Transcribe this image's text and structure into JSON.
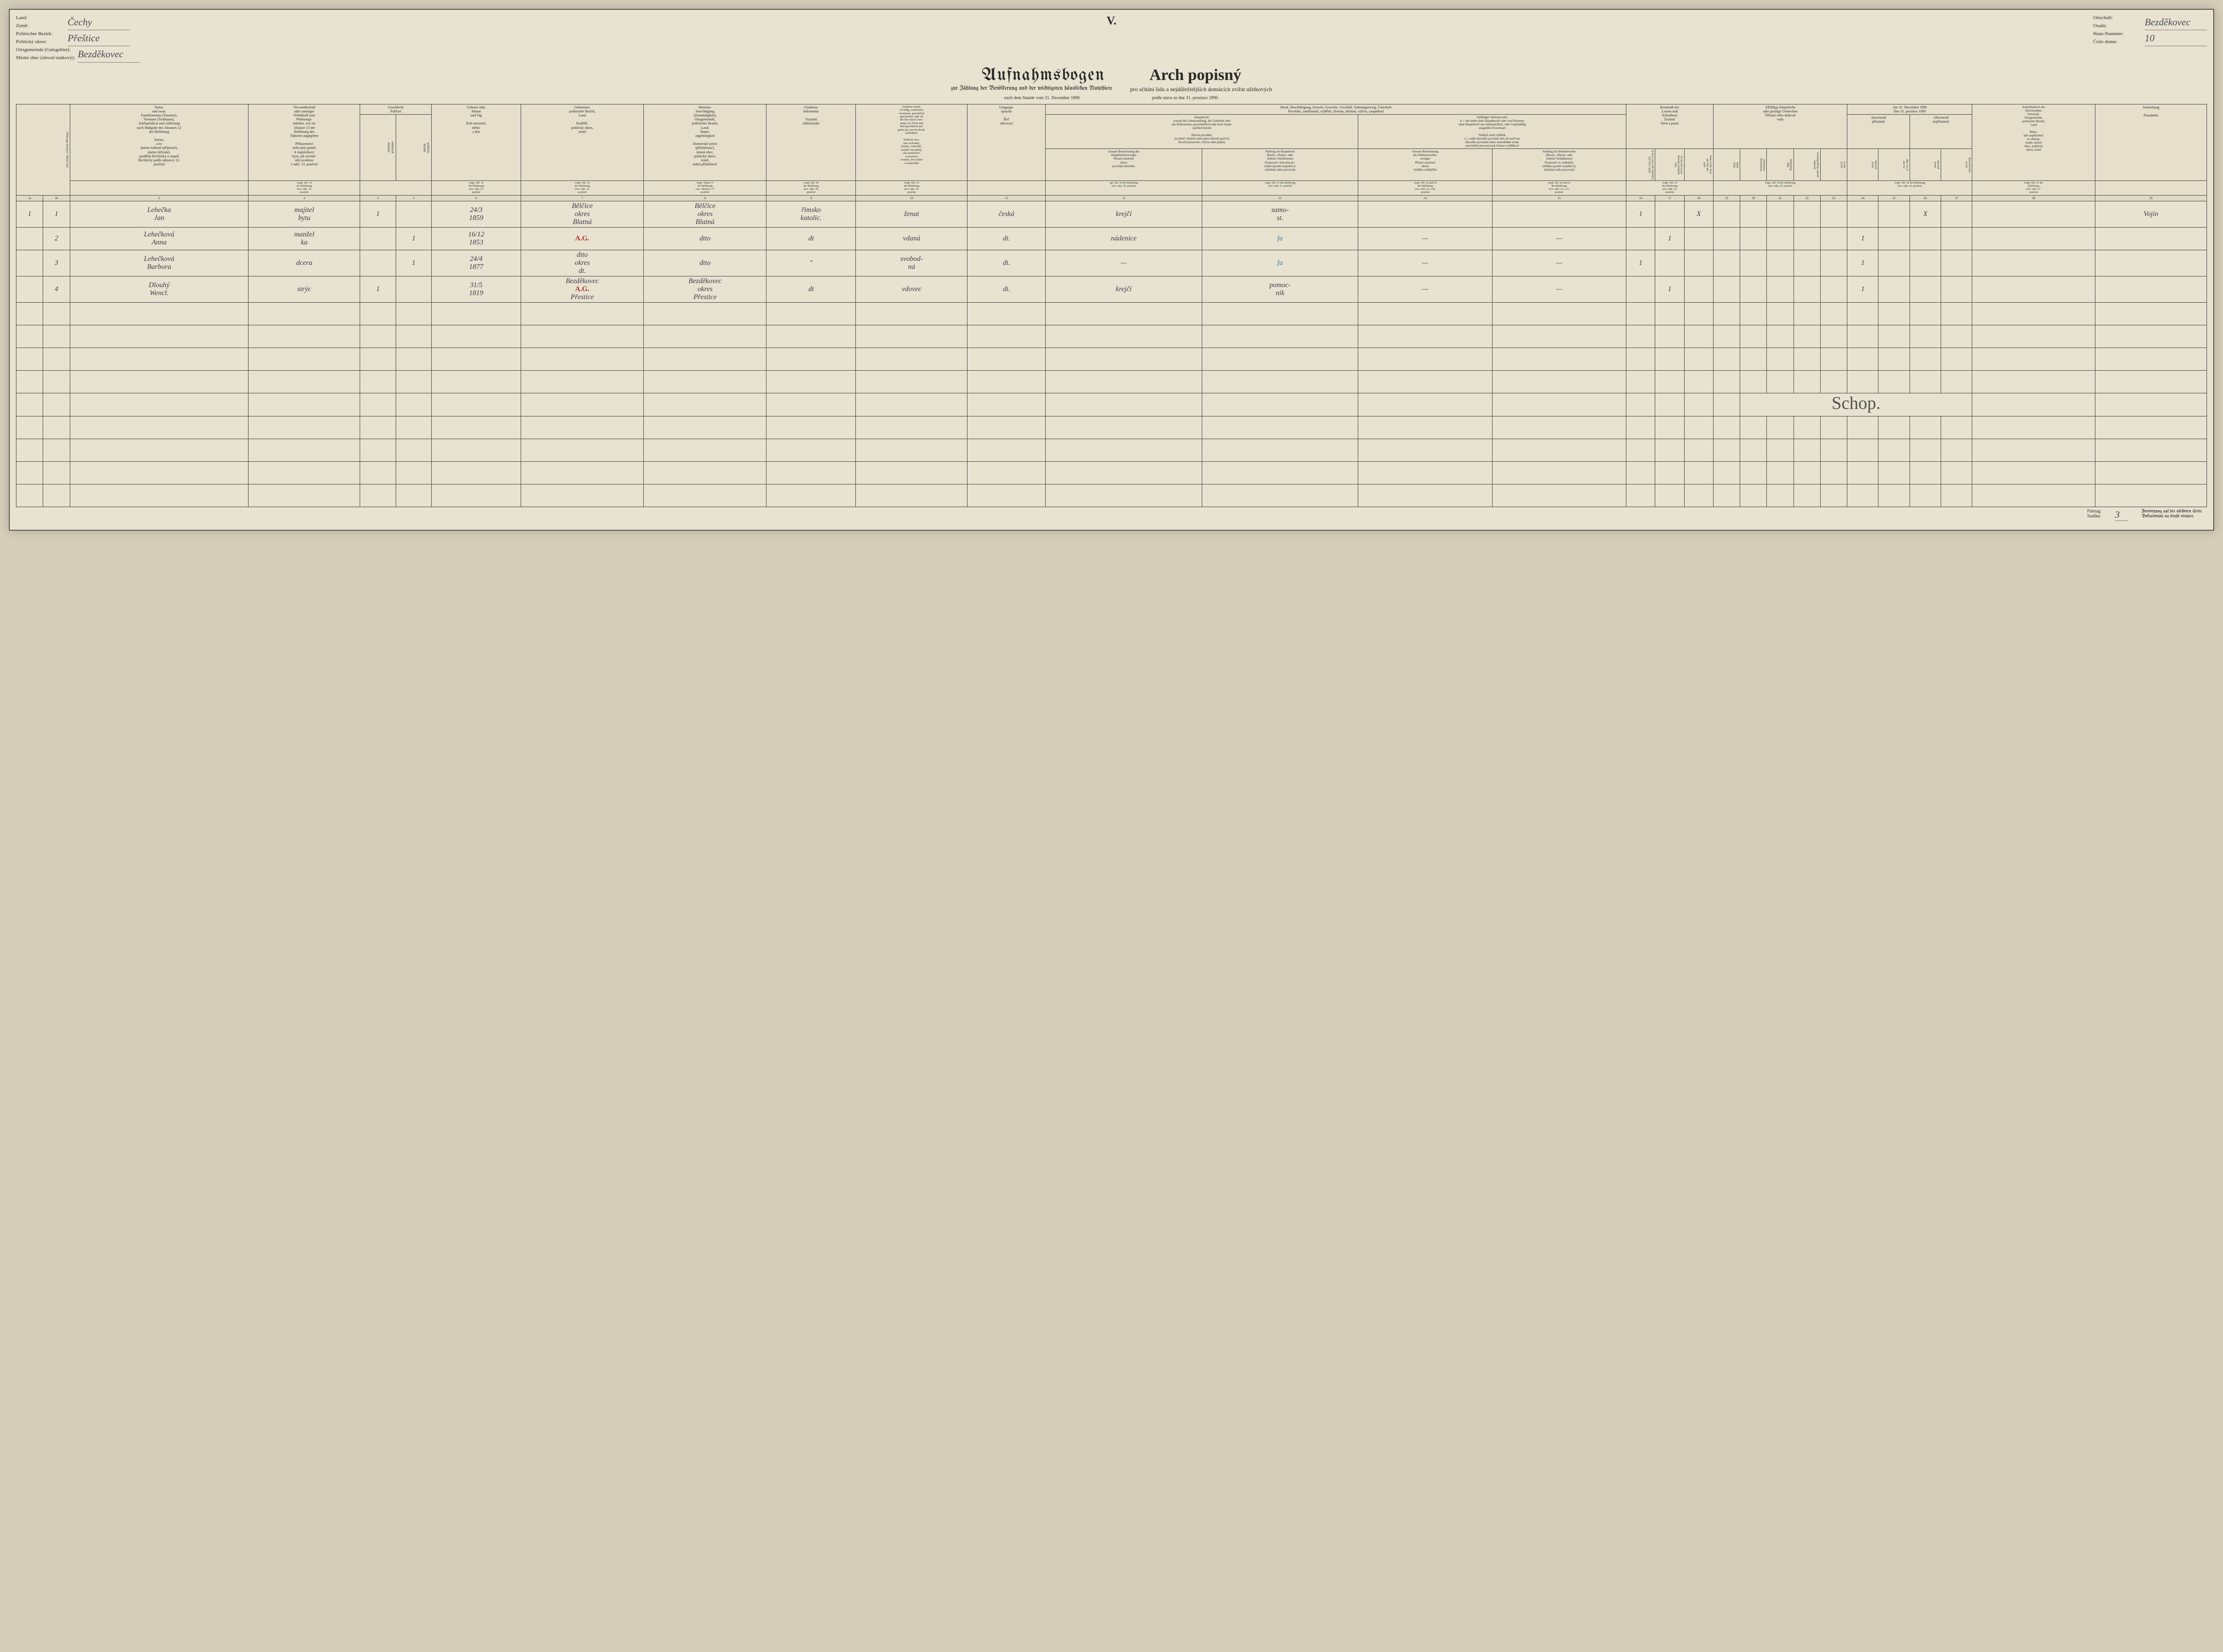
{
  "sheet_number": "V.",
  "header_left": {
    "land": {
      "de": "Land:",
      "cz": "Země:",
      "val": "Čechy"
    },
    "bezirk": {
      "de": "Politischer Bezirk:",
      "cz": "Politický okres:",
      "val": "Přeštice"
    },
    "gemeinde": {
      "de": "Ortsgemeinde (Gutsgebiet):",
      "cz": "Místní obec (obvod statkový):",
      "val": "Bezděkovec"
    }
  },
  "header_right": {
    "ort": {
      "de": "Ortschaft:",
      "cz": "Osada:",
      "val": "Bezděkovec"
    },
    "haus": {
      "de": "Haus-Nummer:",
      "cz": "Číslo domu:",
      "val": "10"
    }
  },
  "title_de": "Aufnahmsbogen",
  "title_cz": "Arch popisný",
  "subtitle_de": "zur Zählung der Bevölkerung und der wichtigsten häuslichen Nutzthiere",
  "subtitle_cz": "pro sčítání lidu a nejdůležitějších domácích zvířat užitkových",
  "date_de": "nach dem Stande vom 31. December 1890.",
  "date_cz": "podle stavu ze dne 31. prosince 1890.",
  "col_groups": {
    "g1": "",
    "g2": "Name,\nund zwar:\nFamilienname (Zuname),\nVorname (Taufname),\nAdelsprädicat und Adelsrang\nnach Maßgabe des Absatzes 12\nder Belehrung\n\nJméno,\na to:\njméno rodinné (příjmení),\njméno (křestní),\npredikát šlechtický a stupeň\nšlechtický podle odstavce 12.\npoučení",
    "g3": "Verwandtschaft\noder sonstiges\nVerhältniß zum\nWohnungs-\ninhaber, wie im\nAbsatze 13 der\nBelehrung des\nNäheren angegeben\n\nPříbuzenství\nnebo jiný poměr\nk majetníkovi\nbytu, jak zevrub-\nněji uvedeno\nv odst. 13. poučení",
    "g4": "Geschlecht\nPohlaví",
    "g5": "Geburts-Jahr,\nMonat\nund Tag\n\nRok narození,\nměsíc\na den",
    "g6": "Geburtsort,\npolitischer Bezirk,\nLand\n\nRodiště,\npolitický okres,\nzemě",
    "g7": "Heimats-\nberechtigung\n(Zuständigkeit),\nOrtsgemeinde,\npolitischer Bezirk,\nLand,\nStaats-\nangehörigkeit\n\nDomovské právo\n(příslušnosť),\nmístní obec,\npolitický okres,\nzemě,\nstátní příslušnosť",
    "g8": "Glaubens-\nbekenntnis\n\nVyznání\nnáboženské",
    "g9": "Familien-Stand,\nob ledig, verheiratet,\nverwitwet, gerichtlich\ngeschieden, oder ob\ndie Ehe durch Tren-\nnung von Tisch und\nBett gerichtlich auf-\ngelöst ist; nur bei Richt-\nkatholiken\n\nRodinný stav,\nzda svobodný,\nženatý, ovdovělý,\nsoudně rozvedený,\nzda manželství\nrozloučeno\nsoudem_loto toliko\nu nekatolíků",
    "g10": "Umgangs-\nsprache\n\nŘeč\nobcovací",
    "g11": "Beruf, Beschäftigung, Erwerb, Gewerbe, Geschäft, Nahrungszweig, Unterhalt\nPovolání, zaměstnání, výdělek, živnost, obchod, výživa, zaopatření",
    "g11a": "Hauptberuf,\nworauf die Lebensstellung, der Unterhalt oder\ndas Einkommen ausschließlich oder doch haupt-\nsächlich beruht\n\nHlavní povolání,\nna němž výlučně nebo přece hlavně spočívá\nživotní postavení, výživa nebo příjmy",
    "g11b": "Allfälliger Nebenerwerb,\nd. i. die neben dem Hauptberufe oder von Personen\nohne Hauptberuf nur nebensächlich, oder vorjelmäßig\nausgeübte Erwerbsart\n\nVedlejší snad výdělek,\nt. j. vedle hlavního povolání neb od osob bez\nhlavního povolání toliko mimořádně avšak\npravidelně provozovaná činnost výdělková",
    "g12": "Genaue Bezeichnung des\nHauptberufszweiges\nPřesné označení\noboru\npovolání hlavního",
    "g13": "Stellung im Hauptberuf\nBesitz-, Dienst- oder\nArbeits-Verhältnisse)\nPostavení v hlavním po-\nvolání (poměr majetkový,\nslužebný nebo pracovní)",
    "g14": "Genaue Bezeichnung\ndes Nebenerwerbs-\nzweiges\nPřesné označení\noboru\nvýdělku vedlejšího",
    "g15": "Stellung im Nebenerwerbe\n(Besitz-, Dienst- oder\nArbeits-Verhältnisse)\nPostavení ve vedlejším\nvýdělku (poměr majetkový,\nslužebný nebo pracovní)",
    "g16": "Kenntniß des\nLesens und\nSchreibens\nZnalosť\nčtení a psaní",
    "g17": "Allfällige körperliche\noder geistige Gebrechen\nTělesné nebo duševní\nvady",
    "g18": "Am 31. December 1890\nDne 31. prosince 1890",
    "g18a": "Anwesend\npřítomný",
    "g18b": "Abwesend\nnepřítomný",
    "g19": "Aufenthaltsort des\nAbwesenden,\nOrtschaft,\nOrtsgemeinde,\npolitischer Bezirk,\nLand\n\nMísto,\nkde nepřítomný\nse zdržuje,\nosada, místní\nobec, politický\nokres, země",
    "g20": "Anmerkung\n\nPoznámka"
  },
  "sub": {
    "s4m": "männlich\nmužské",
    "s4f": "weiblich\nženské",
    "s16a": "ist des Lesen und Schreiben\numí čísti i psáti",
    "s16b": "ist nur des Lesen\nDovede poněkmd\nčísti",
    "s16c": "kann weder lesen\nani čísti ani\npsáti",
    "s17a": "blind\nslepý",
    "s17b": "taubstumm\nhluchoněmý",
    "s17c": "blödsinnig\nblbý",
    "s17d": "irrsinnig šílený, smyslů\nzbavený",
    "s17e": "Cretin\nkretin",
    "s18a1": "dauernd\ntrvale",
    "s18a2": "dort, wo er\nans čas",
    "s18b1": "dauernd\ntrvale",
    "s18b2": "dauernd trvale\nna čas"
  },
  "refs": {
    "r3": "vergl. Abf. 14\nder Belehrung\nsrov. odst. 14.\npoučení",
    "r7": "vergl. Abf. 15\nder Belehrung\nsrov. odst. 15.\npoučení",
    "r8": "vergl. Abf. 16\nder Belehrung\nsrov. odst. 16.\npoučení",
    "r9": "vergl. Absatz 17\nder Belehrung\nsrov. odstavec 17.\npoučení",
    "r10": "vergl. Abf. 18\nder Belehrung\nsrov. odst. 18.\npoučení",
    "r11": "vergl. Abf. 19\nder Belehrung\nsrov. odst. 19.\npoučení",
    "r12": "vgl. Abf. 20 der Belehrung\nsrov. odst. 20. poučení",
    "r13": "vergl. Abf. 21 der Belehrung\nsrov. odst. 21. poučení",
    "r14": "vergl. Abf. 22 und 20\nder Belehrung\nsrov. odst. 22. a 20.\npoučení",
    "r15": "vergl. Abf. 22 und 21\nder Belehrung\nsrov. odst. 22. a 21.\npoučení",
    "r16": "vergl. Abf. 23\nder Belehrung\nsrov. odst. 23.\npoučení",
    "r17": "vergl. Abf. 24\nder Belehrung\nsrov. odst. 24.\npoučení",
    "r18": "vergl. Abf. 25 der Belehrung\nsrov. odst. 25. poučení",
    "r19": "vergl. Abf. 26 der Belehrung\nsrov. odst. 26. poučení",
    "r20": "vergl. Abf. 27 der\nBelehrung\nsrov. odst. 27.\npoučení"
  },
  "colnums": [
    "1a",
    "1b",
    "2",
    "3",
    "4",
    "5",
    "6",
    "7",
    "8",
    "9",
    "10",
    "11",
    "12",
    "13",
    "14",
    "15",
    "16",
    "17",
    "18",
    "19",
    "20",
    "21",
    "22",
    "23",
    "24",
    "25",
    "26",
    "27",
    "28",
    "29"
  ],
  "rows": [
    {
      "n1": "1",
      "n2": "1",
      "name": "Lehečka\nJan",
      "rel": "majitel\nbytu",
      "m": "1",
      "f": "",
      "born": "24/3\n1859",
      "birthplace": "Bělčice\nokres\nBlatná",
      "heimat": "Bělčice\nokres\nBlatná",
      "faith": "římsko\nkatolic.",
      "family": "ženat",
      "lang": "česká",
      "occ_main": "krejčí",
      "occ_pos": "samo-\nst.",
      "occ_side": "",
      "occ_side_pos": "",
      "read": "1",
      "readonly": "",
      "noread": "X",
      "d1": "",
      "d2": "",
      "d3": "",
      "d4": "",
      "d5": "",
      "pres1": "",
      "pres2": "",
      "abs1": "X",
      "abs2": "",
      "place": "",
      "note": "Vojín"
    },
    {
      "n1": "",
      "n2": "2",
      "name": "Lehečková\nAnna",
      "rel": "manžel\nka",
      "m": "",
      "f": "1",
      "born": "16/12\n1853",
      "birthplace": "A.G.",
      "heimat": "dtto",
      "faith": "dt",
      "family": "vdaná",
      "lang": "dt.",
      "occ_main": "nádenice",
      "occ_pos": "fa",
      "occ_side": "—",
      "occ_side_pos": "—",
      "read": "",
      "readonly": "1",
      "noread": "",
      "d1": "",
      "d2": "",
      "d3": "",
      "d4": "",
      "d5": "",
      "pres1": "1",
      "pres2": "",
      "abs1": "",
      "abs2": "",
      "place": "",
      "note": ""
    },
    {
      "n1": "",
      "n2": "3",
      "name": "Lehečková\nBarbora",
      "rel": "dcera",
      "m": "",
      "f": "1",
      "born": "24/4\n1877",
      "birthplace": "dtto\nokres\ndt.",
      "heimat": "dtto",
      "faith": "\"",
      "family": "svobod-\nná",
      "lang": "dt.",
      "occ_main": "—",
      "occ_pos": "fa",
      "occ_side": "—",
      "occ_side_pos": "—",
      "read": "1",
      "readonly": "",
      "noread": "",
      "d1": "",
      "d2": "",
      "d3": "",
      "d4": "",
      "d5": "",
      "pres1": "1",
      "pres2": "",
      "abs1": "",
      "abs2": "",
      "place": "",
      "note": ""
    },
    {
      "n1": "",
      "n2": "4",
      "name": "Dlouhý\nWencl.",
      "rel": "strýc",
      "m": "1",
      "f": "",
      "born": "31/5\n1819",
      "birthplace": "Bezděkovec\nA.G.\nPřestice",
      "heimat": "Bezděkovec\nokres\nPřestice",
      "faith": "dt",
      "family": "vdovec",
      "lang": "dt.",
      "occ_main": "krejčí",
      "occ_pos": "pomoc-\nník",
      "occ_side": "—",
      "occ_side_pos": "—",
      "read": "",
      "readonly": "1",
      "noread": "",
      "d1": "",
      "d2": "",
      "d3": "",
      "d4": "",
      "d5": "",
      "pres1": "1",
      "pres2": "",
      "abs1": "",
      "abs2": "",
      "place": "",
      "note": ""
    }
  ],
  "empty_rows": 9,
  "footer": {
    "furtrag_de": "Fürtrag:",
    "furtrag_cz": "Snáška:",
    "furtrag_val": "3",
    "cont_de": "Fortsetzung auf der nächsten Seite.",
    "cont_cz": "Pokračování na druhé stránce."
  },
  "signature": "Schop."
}
